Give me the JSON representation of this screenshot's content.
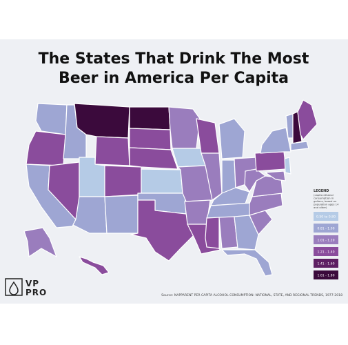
{
  "title_lines": [
    "The States That Drink The Most",
    "Beer in America Per Capita"
  ],
  "legend": {
    "title": "LEGEND",
    "text": [
      "(capita ethanol",
      "consumption in",
      "gallons, based on",
      "population ages 14",
      "and older)"
    ],
    "bins": [
      {
        "label": "0.50 to 0.80",
        "color": "#b5cbe6"
      },
      {
        "label": "0.81 - 1.00",
        "color": "#9ea6d3"
      },
      {
        "label": "1.01 - 1.20",
        "color": "#9a7dbd"
      },
      {
        "label": "1.21 - 1.40",
        "color": "#8a4c9c"
      },
      {
        "label": "1.41 - 1.60",
        "color": "#5d1f62"
      },
      {
        "label": "1.61 - 1.80",
        "color": "#3b0a3c"
      }
    ]
  },
  "source": "Source: NAPPARENT PER CAPITA ALCOHOL CONSUMPTION: NATIONAL, STATE, AND REGIONAL TRENDS, 1977-2018",
  "logo": [
    "VP",
    "PRO"
  ]
}
